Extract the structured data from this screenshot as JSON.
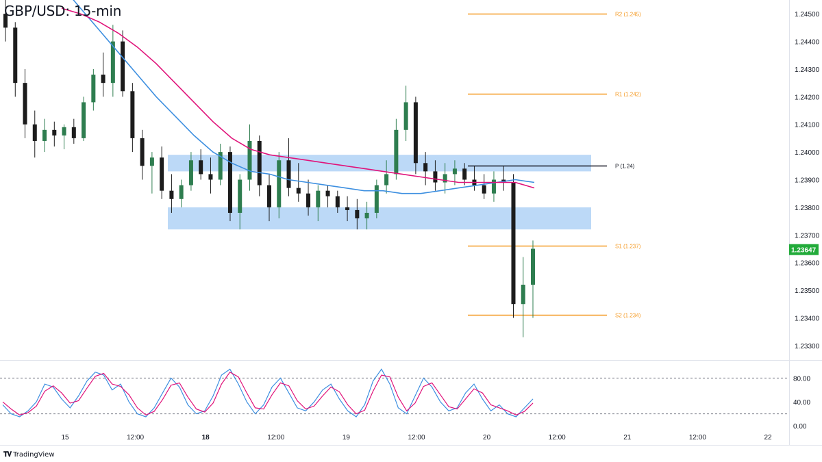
{
  "title": "GBP/USD: 15-min",
  "brand": {
    "logo_icon": "tradingview-logo-icon",
    "label": "TradingView"
  },
  "colors": {
    "up": "#2e7d4f",
    "down": "#1c1c1c",
    "ema_fast": "#3d8fe0",
    "ema_slow": "#e0137a",
    "pivot_line": "#131722",
    "sr_line": "#f59a23",
    "zone_fill": "#bcd9f7",
    "stoch_k": "#3d8fe0",
    "stoch_d": "#e0137a",
    "price_tag": "#22ab3a"
  },
  "chart_data": [
    {
      "type": "candlestick",
      "title": "GBP/USD: 15-min",
      "ylim": [
        1.2325,
        1.2455
      ],
      "price_ticks": [
        "1.24500",
        "1.24400",
        "1.24300",
        "1.24200",
        "1.24100",
        "1.24000",
        "1.23900",
        "1.23800",
        "1.23700",
        "1.23600",
        "1.23500",
        "1.23400",
        "1.23300"
      ],
      "time_ticks": [
        "15",
        "12:00",
        "18",
        "12:00",
        "19",
        "12:00",
        "20",
        "12:00",
        "21",
        "12:00",
        "22"
      ],
      "last_price": "1.23647",
      "levels": [
        {
          "label": "R2 (1.245)",
          "value": 1.245,
          "kind": "resistance"
        },
        {
          "label": "R1 (1.242)",
          "value": 1.2421,
          "kind": "resistance"
        },
        {
          "label": "P (1.24)",
          "value": 1.2395,
          "kind": "pivot"
        },
        {
          "label": "S1 (1.237)",
          "value": 1.2366,
          "kind": "support"
        },
        {
          "label": "S2 (1.234)",
          "value": 1.2341,
          "kind": "support"
        }
      ],
      "zones": [
        {
          "name": "upper zone",
          "from": 1.2393,
          "to": 1.2399
        },
        {
          "name": "lower zone",
          "from": 1.2372,
          "to": 1.238
        }
      ],
      "moving_averages": [
        {
          "name": "fast MA",
          "color": "#3d8fe0",
          "values": [
            1.246,
            1.2452,
            1.2444,
            1.2436,
            1.2428,
            1.242,
            1.2413,
            1.2406,
            1.24,
            1.2396,
            1.2393,
            1.2392,
            1.239,
            1.2389,
            1.2388,
            1.2387,
            1.2386,
            1.2386,
            1.2385,
            1.2385,
            1.2386,
            1.2387,
            1.2388,
            1.2389,
            1.239,
            1.2389
          ]
        },
        {
          "name": "slow MA",
          "color": "#e0137a",
          "values": [
            1.2452,
            1.245,
            1.2447,
            1.2443,
            1.2438,
            1.2432,
            1.2425,
            1.2418,
            1.2411,
            1.2405,
            1.2401,
            1.2399,
            1.2398,
            1.2397,
            1.2396,
            1.2395,
            1.2394,
            1.2393,
            1.2392,
            1.2391,
            1.239,
            1.2389,
            1.2389,
            1.2389,
            1.2389,
            1.2387
          ]
        }
      ],
      "candles_ohlc": [
        [
          1.245,
          1.2455,
          1.244,
          1.2445
        ],
        [
          1.2445,
          1.2447,
          1.242,
          1.2425
        ],
        [
          1.2425,
          1.243,
          1.2405,
          1.241
        ],
        [
          1.241,
          1.2415,
          1.2398,
          1.2404
        ],
        [
          1.2404,
          1.2412,
          1.24,
          1.2408
        ],
        [
          1.2408,
          1.2411,
          1.2402,
          1.2406
        ],
        [
          1.2406,
          1.241,
          1.2401,
          1.2409
        ],
        [
          1.2409,
          1.2412,
          1.2403,
          1.2405
        ],
        [
          1.2405,
          1.242,
          1.2404,
          1.2418
        ],
        [
          1.2418,
          1.243,
          1.2415,
          1.2428
        ],
        [
          1.2428,
          1.2436,
          1.242,
          1.2425
        ],
        [
          1.2425,
          1.2446,
          1.242,
          1.244
        ],
        [
          1.244,
          1.2444,
          1.242,
          1.2422
        ],
        [
          1.2422,
          1.2425,
          1.24,
          1.2405
        ],
        [
          1.2405,
          1.2408,
          1.239,
          1.2395
        ],
        [
          1.2395,
          1.24,
          1.2385,
          1.2398
        ],
        [
          1.2398,
          1.2402,
          1.2383,
          1.2386
        ],
        [
          1.2386,
          1.2392,
          1.2378,
          1.2383
        ],
        [
          1.2383,
          1.239,
          1.238,
          1.2388
        ],
        [
          1.2388,
          1.24,
          1.2386,
          1.2397
        ],
        [
          1.2397,
          1.2401,
          1.239,
          1.2392
        ],
        [
          1.2392,
          1.2398,
          1.2385,
          1.239
        ],
        [
          1.239,
          1.2403,
          1.2388,
          1.24
        ],
        [
          1.24,
          1.2402,
          1.2375,
          1.2378
        ],
        [
          1.2378,
          1.2392,
          1.2372,
          1.239
        ],
        [
          1.239,
          1.241,
          1.2386,
          1.2404
        ],
        [
          1.2404,
          1.2406,
          1.2384,
          1.2388
        ],
        [
          1.2388,
          1.2392,
          1.2375,
          1.238
        ],
        [
          1.238,
          1.24,
          1.2376,
          1.2397
        ],
        [
          1.2397,
          1.2405,
          1.2384,
          1.2387
        ],
        [
          1.2387,
          1.2396,
          1.2382,
          1.2385
        ],
        [
          1.2385,
          1.239,
          1.2377,
          1.238
        ],
        [
          1.238,
          1.2388,
          1.2375,
          1.2386
        ],
        [
          1.2386,
          1.2388,
          1.238,
          1.2384
        ],
        [
          1.2384,
          1.2386,
          1.2378,
          1.238
        ],
        [
          1.238,
          1.2384,
          1.2375,
          1.2379
        ],
        [
          1.2379,
          1.2383,
          1.2372,
          1.2376
        ],
        [
          1.2376,
          1.2382,
          1.2372,
          1.2378
        ],
        [
          1.2378,
          1.239,
          1.2376,
          1.2388
        ],
        [
          1.2388,
          1.2397,
          1.2385,
          1.2392
        ],
        [
          1.2392,
          1.2412,
          1.239,
          1.2408
        ],
        [
          1.2408,
          1.2424,
          1.2404,
          1.2418
        ],
        [
          1.2418,
          1.242,
          1.2392,
          1.2396
        ],
        [
          1.2396,
          1.24,
          1.2388,
          1.2393
        ],
        [
          1.2393,
          1.2397,
          1.2386,
          1.2389
        ],
        [
          1.2389,
          1.2396,
          1.2385,
          1.2392
        ],
        [
          1.2392,
          1.2397,
          1.2388,
          1.2394
        ],
        [
          1.2394,
          1.2396,
          1.2388,
          1.239
        ],
        [
          1.239,
          1.2395,
          1.2386,
          1.2388
        ],
        [
          1.2388,
          1.2392,
          1.2383,
          1.2385
        ],
        [
          1.2385,
          1.2393,
          1.2382,
          1.239
        ],
        [
          1.239,
          1.2395,
          1.2386,
          1.2389
        ],
        [
          1.2389,
          1.2392,
          1.234,
          1.2345
        ],
        [
          1.2345,
          1.2362,
          1.2333,
          1.2352
        ],
        [
          1.2352,
          1.2368,
          1.234,
          1.2365
        ]
      ]
    },
    {
      "type": "line",
      "name": "stochastic oscillator",
      "ylim": [
        0,
        100
      ],
      "ticks": [
        "80.00",
        "40.00",
        "0.00"
      ],
      "bands": [
        80,
        20
      ],
      "series": [
        {
          "color": "#3d8fe0",
          "values": [
            35,
            20,
            15,
            25,
            40,
            70,
            65,
            45,
            30,
            50,
            75,
            90,
            85,
            60,
            70,
            40,
            20,
            15,
            30,
            55,
            80,
            65,
            35,
            20,
            25,
            50,
            85,
            95,
            70,
            40,
            20,
            35,
            65,
            80,
            55,
            30,
            25,
            40,
            60,
            70,
            45,
            25,
            15,
            35,
            75,
            95,
            70,
            30,
            20,
            50,
            80,
            65,
            40,
            25,
            30,
            55,
            70,
            45,
            25,
            35,
            20,
            15,
            30,
            45
          ]
        },
        {
          "color": "#e0137a",
          "values": [
            40,
            28,
            18,
            22,
            33,
            58,
            67,
            55,
            38,
            42,
            63,
            83,
            88,
            70,
            66,
            52,
            30,
            18,
            24,
            44,
            68,
            72,
            48,
            28,
            23,
            38,
            70,
            90,
            82,
            55,
            30,
            28,
            52,
            72,
            67,
            42,
            28,
            33,
            50,
            65,
            57,
            35,
            20,
            26,
            58,
            85,
            82,
            48,
            25,
            38,
            66,
            72,
            52,
            32,
            28,
            45,
            62,
            55,
            35,
            30,
            25,
            18,
            24,
            38
          ]
        }
      ]
    }
  ]
}
